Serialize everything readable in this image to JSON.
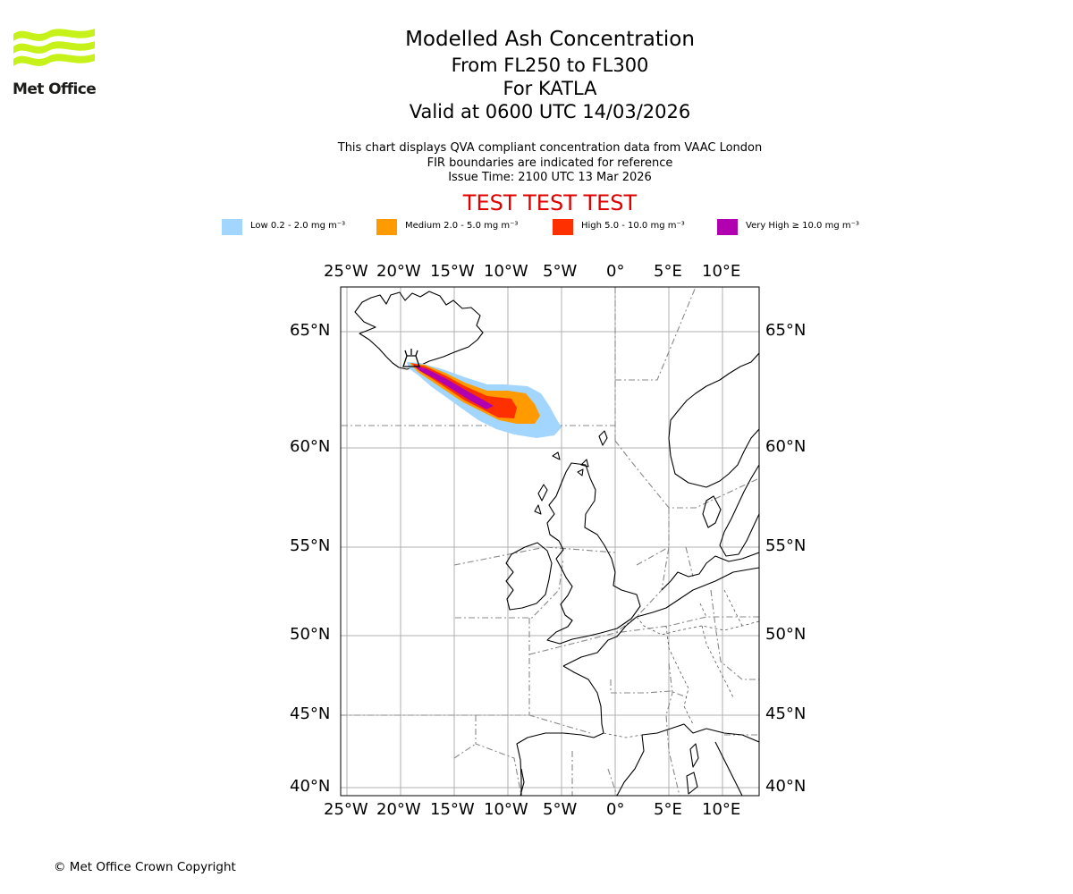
{
  "header": {
    "logo_text": "Met Office",
    "title": "Modelled Ash Concentration",
    "level_range": "From FL250 to FL300",
    "volcano_line": "For KATLA",
    "valid_line": "Valid at 0600 UTC 14/03/2026",
    "description": "This chart displays QVA compliant concentration data from VAAC London",
    "fir_note": "FIR boundaries are indicated for reference",
    "issue_time": "Issue Time: 2100 UTC 13 Mar 2026",
    "test_banner": "TEST TEST TEST"
  },
  "legend": [
    {
      "label": "Low 0.2 - 2.0 mg m⁻³",
      "color": "#a3d6ff"
    },
    {
      "label": "Medium 2.0 - 5.0 mg m⁻³",
      "color": "#ff9a00"
    },
    {
      "label": "High 5.0 - 10.0 mg m⁻³",
      "color": "#ff3000"
    },
    {
      "label": "Very High ≥ 10.0 mg m⁻³",
      "color": "#b000b0"
    }
  ],
  "map": {
    "lon_ticks": [
      "25°W",
      "20°W",
      "15°W",
      "10°W",
      "5°W",
      "0°",
      "5°E",
      "10°E"
    ],
    "lat_ticks": [
      "65°N",
      "60°N",
      "55°N",
      "50°N",
      "45°N",
      "40°N"
    ],
    "volcano": "KATLA",
    "colors": {
      "grid": "#b0b0b0",
      "coast": "#000000",
      "fir": "#888888"
    }
  },
  "footer": {
    "copyright": "© Met Office Crown Copyright"
  }
}
